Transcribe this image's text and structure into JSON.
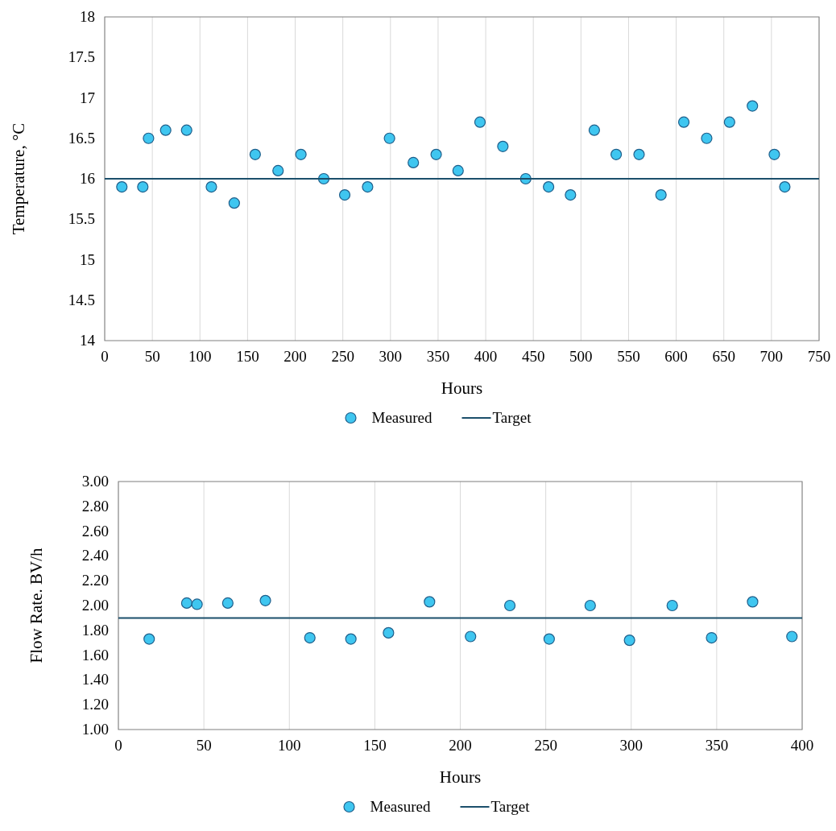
{
  "chart_data": [
    {
      "type": "scatter",
      "xlabel": "Hours",
      "ylabel": "Temperature, °C",
      "xlim": [
        0,
        750
      ],
      "ylim": [
        14,
        18
      ],
      "xticks": [
        0,
        50,
        100,
        150,
        200,
        250,
        300,
        350,
        400,
        450,
        500,
        550,
        600,
        650,
        700,
        750
      ],
      "yticks": [
        14,
        14.5,
        15,
        15.5,
        16,
        16.5,
        17,
        17.5,
        18
      ],
      "grid": "x",
      "legend": "bottom",
      "series": [
        {
          "name": "Measured",
          "marker": "circle",
          "color": "#3fc6f0",
          "x": [
            18,
            40,
            46,
            64,
            86,
            112,
            136,
            158,
            182,
            206,
            230,
            252,
            276,
            299,
            324,
            348,
            371,
            394,
            418,
            442,
            466,
            489,
            514,
            537,
            561,
            584,
            608,
            632,
            656,
            680,
            703,
            714
          ],
          "values": [
            15.9,
            15.9,
            16.5,
            16.6,
            16.6,
            15.9,
            15.7,
            16.3,
            16.1,
            16.3,
            16.0,
            15.8,
            15.9,
            16.5,
            16.2,
            16.3,
            16.1,
            16.7,
            16.4,
            16.0,
            15.9,
            15.8,
            16.6,
            16.3,
            16.3,
            15.8,
            16.7,
            16.5,
            16.7,
            16.9,
            16.3,
            15.9
          ]
        },
        {
          "name": "Target",
          "type": "line",
          "marker": "none",
          "color": "#1b4f6b",
          "x": [
            0,
            750
          ],
          "values": [
            16,
            16
          ]
        }
      ]
    },
    {
      "type": "scatter",
      "xlabel": "Hours",
      "ylabel": "Flow Rate. BV/h",
      "xlim": [
        0,
        400
      ],
      "ylim": [
        1,
        3
      ],
      "xticks": [
        0,
        50,
        100,
        150,
        200,
        250,
        300,
        350,
        400
      ],
      "yticks": [
        {
          "value": 1,
          "label": "1.00"
        },
        {
          "value": 1.2,
          "label": "1.20"
        },
        {
          "value": 1.4,
          "label": "1.40"
        },
        {
          "value": 1.6,
          "label": "1.60"
        },
        {
          "value": 1.8,
          "label": "1.80"
        },
        {
          "value": 2,
          "label": "2.00"
        },
        {
          "value": 2.2,
          "label": "2.20"
        },
        {
          "value": 2.4,
          "label": "2.40"
        },
        {
          "value": 2.6,
          "label": "2.60"
        },
        {
          "value": 2.8,
          "label": "2.80"
        },
        {
          "value": 3,
          "label": "3.00"
        }
      ],
      "grid": "x",
      "legend": "bottom",
      "series": [
        {
          "name": "Measured",
          "marker": "circle",
          "color": "#3fc6f0",
          "x": [
            18,
            40,
            46,
            64,
            86,
            112,
            136,
            158,
            182,
            206,
            229,
            252,
            276,
            299,
            324,
            347,
            371,
            394
          ],
          "values": [
            1.73,
            2.02,
            2.01,
            2.02,
            2.04,
            1.74,
            1.73,
            1.78,
            2.03,
            1.75,
            2.0,
            1.73,
            2.0,
            1.72,
            2.0,
            1.74,
            2.03,
            1.75
          ]
        },
        {
          "name": "Target",
          "type": "line",
          "marker": "none",
          "color": "#1b4f6b",
          "x": [
            0,
            400
          ],
          "values": [
            1.9,
            1.9
          ]
        }
      ]
    }
  ]
}
